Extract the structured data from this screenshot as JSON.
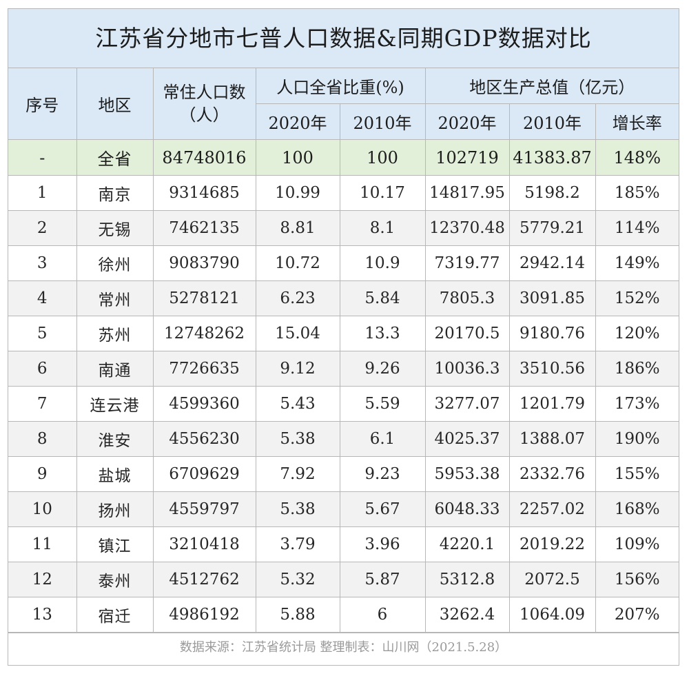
{
  "title": "江苏省分地市七普人口数据&同期GDP数据对比",
  "headers": {
    "seq": "序号",
    "region": "地区",
    "population": "常住人口数（人）",
    "share_group": "人口全省比重(%)",
    "gdp_group": "地区生产总值（亿元）",
    "share_2020": "2020年",
    "share_2010": "2010年",
    "gdp_2020": "2020年",
    "gdp_2010": "2010年",
    "growth": "增长率"
  },
  "total": {
    "seq": "-",
    "region": "全省",
    "population": "84748016",
    "share_2020": "100",
    "share_2010": "100",
    "gdp_2020": "102719",
    "gdp_2010": "41383.87",
    "growth": "148%"
  },
  "rows": [
    {
      "seq": "1",
      "region": "南京",
      "population": "9314685",
      "share_2020": "10.99",
      "share_2010": "10.17",
      "gdp_2020": "14817.95",
      "gdp_2010": "5198.2",
      "growth": "185%"
    },
    {
      "seq": "2",
      "region": "无锡",
      "population": "7462135",
      "share_2020": "8.81",
      "share_2010": "8.1",
      "gdp_2020": "12370.48",
      "gdp_2010": "5779.21",
      "growth": "114%"
    },
    {
      "seq": "3",
      "region": "徐州",
      "population": "9083790",
      "share_2020": "10.72",
      "share_2010": "10.9",
      "gdp_2020": "7319.77",
      "gdp_2010": "2942.14",
      "growth": "149%"
    },
    {
      "seq": "4",
      "region": "常州",
      "population": "5278121",
      "share_2020": "6.23",
      "share_2010": "5.84",
      "gdp_2020": "7805.3",
      "gdp_2010": "3091.85",
      "growth": "152%"
    },
    {
      "seq": "5",
      "region": "苏州",
      "population": "12748262",
      "share_2020": "15.04",
      "share_2010": "13.3",
      "gdp_2020": "20170.5",
      "gdp_2010": "9180.76",
      "growth": "120%"
    },
    {
      "seq": "6",
      "region": "南通",
      "population": "7726635",
      "share_2020": "9.12",
      "share_2010": "9.26",
      "gdp_2020": "10036.3",
      "gdp_2010": "3510.56",
      "growth": "186%"
    },
    {
      "seq": "7",
      "region": "连云港",
      "population": "4599360",
      "share_2020": "5.43",
      "share_2010": "5.59",
      "gdp_2020": "3277.07",
      "gdp_2010": "1201.79",
      "growth": "173%"
    },
    {
      "seq": "8",
      "region": "淮安",
      "population": "4556230",
      "share_2020": "5.38",
      "share_2010": "6.1",
      "gdp_2020": "4025.37",
      "gdp_2010": "1388.07",
      "growth": "190%"
    },
    {
      "seq": "9",
      "region": "盐城",
      "population": "6709629",
      "share_2020": "7.92",
      "share_2010": "9.23",
      "gdp_2020": "5953.38",
      "gdp_2010": "2332.76",
      "growth": "155%"
    },
    {
      "seq": "10",
      "region": "扬州",
      "population": "4559797",
      "share_2020": "5.38",
      "share_2010": "5.67",
      "gdp_2020": "6048.33",
      "gdp_2010": "2257.02",
      "growth": "168%"
    },
    {
      "seq": "11",
      "region": "镇江",
      "population": "3210418",
      "share_2020": "3.79",
      "share_2010": "3.96",
      "gdp_2020": "4220.1",
      "gdp_2010": "2019.22",
      "growth": "109%"
    },
    {
      "seq": "12",
      "region": "泰州",
      "population": "4512762",
      "share_2020": "5.32",
      "share_2010": "5.87",
      "gdp_2020": "5312.8",
      "gdp_2010": "2072.5",
      "growth": "156%"
    },
    {
      "seq": "13",
      "region": "宿迁",
      "population": "4986192",
      "share_2020": "5.88",
      "share_2010": "6",
      "gdp_2020": "3262.4",
      "gdp_2010": "1064.09",
      "growth": "207%"
    }
  ],
  "footer": "数据来源：江苏省统计局  整理制表：山川网（2021.5.28）",
  "colors": {
    "header_bg": "#dbe9f6",
    "total_bg": "#e2efd9",
    "alt_row_bg": "#f2f2f2",
    "border": "#b7b7b7"
  }
}
